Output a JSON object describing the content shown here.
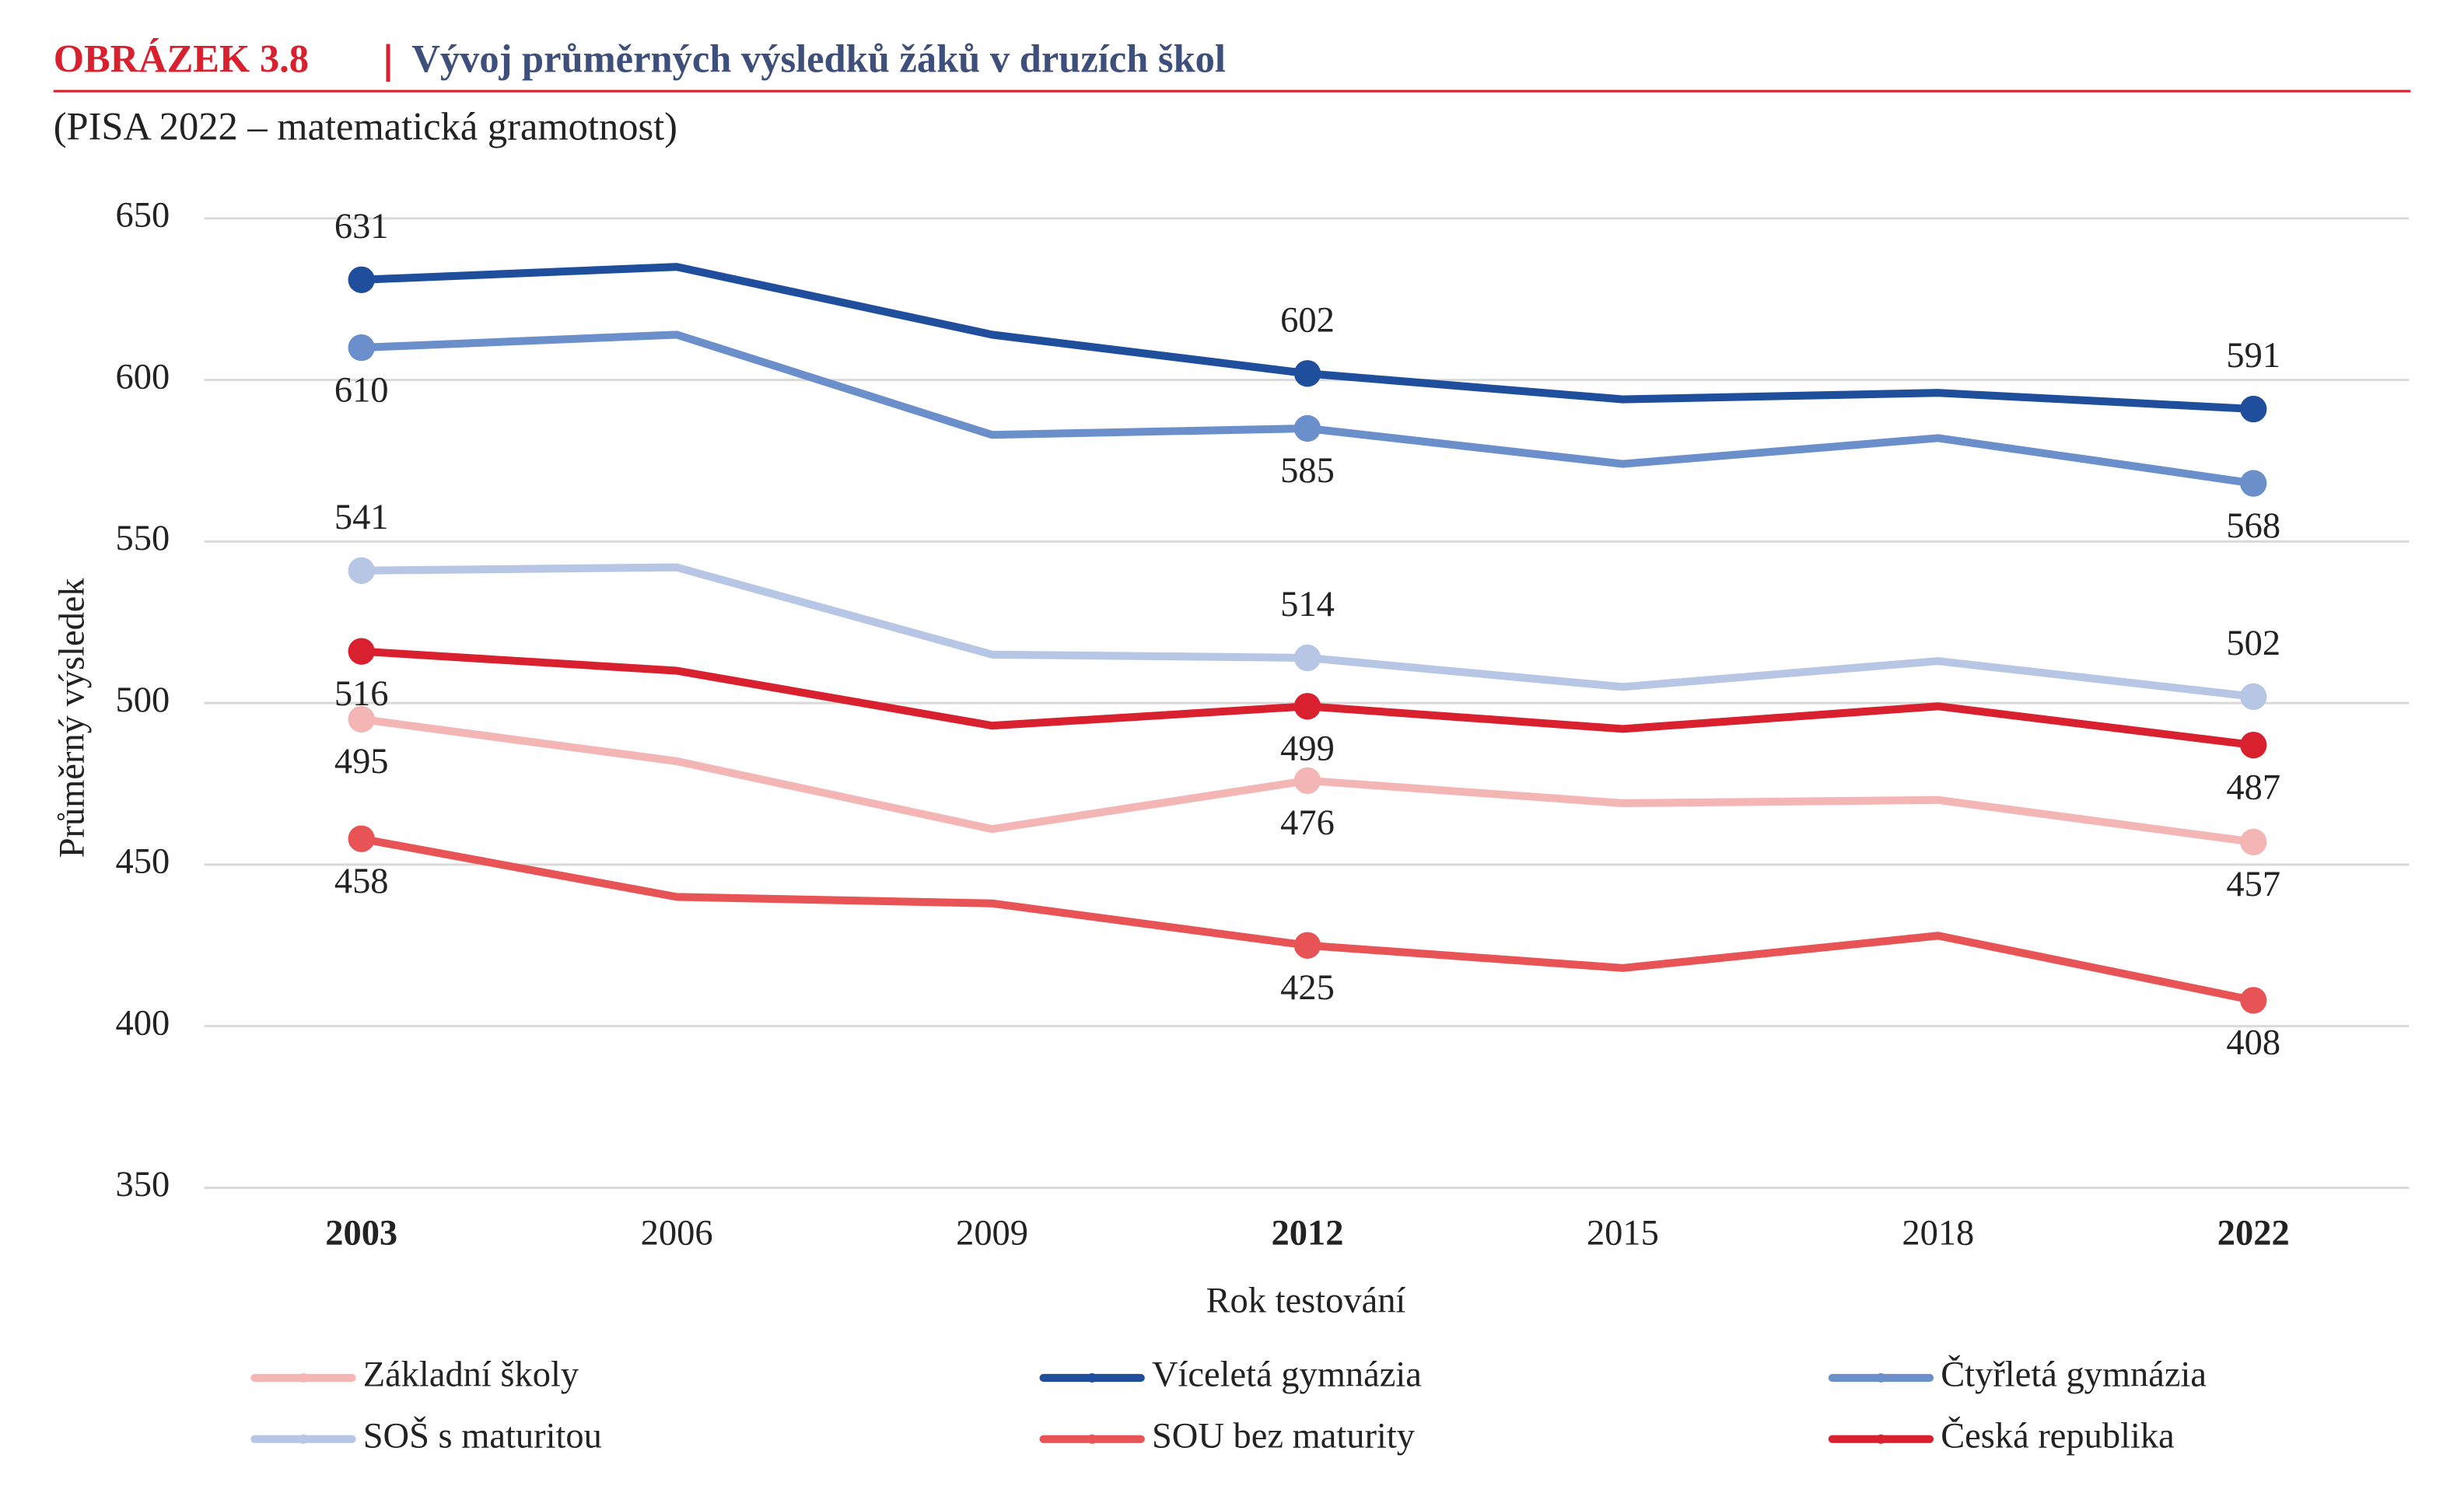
{
  "chart_data": {
    "type": "line",
    "figure_label": "OBRÁZEK 3.8",
    "title": "Vývoj průměrných výsledků žáků v druzích škol",
    "subtitle": "(PISA 2022 – matematická gramotnost)",
    "x_label": "Rok testování",
    "y_label": "Průměrný výsledek",
    "categories": [
      "2003",
      "2006",
      "2009",
      "2012",
      "2015",
      "2018",
      "2022"
    ],
    "ylim": [
      350,
      650
    ],
    "yticks": [
      350,
      400,
      450,
      500,
      550,
      600,
      650
    ],
    "grid": true,
    "legend": "bottom",
    "series": [
      {
        "name": "Základní školy",
        "color": "#f4b6b4",
        "values": [
          495,
          482,
          461,
          476,
          469,
          470,
          457
        ],
        "value_labels": [
          "495",
          null,
          null,
          "476",
          null,
          null,
          "457"
        ]
      },
      {
        "name": "Víceletá gymnázia",
        "color": "#1f4e9c",
        "values": [
          631,
          635,
          614,
          602,
          594,
          596,
          591
        ],
        "value_labels": [
          "631",
          null,
          null,
          "602",
          null,
          null,
          "591"
        ]
      },
      {
        "name": "Čtyřletá gymnázia",
        "color": "#6b8fcb",
        "values": [
          610,
          614,
          583,
          585,
          574,
          582,
          568
        ],
        "value_labels": [
          "610",
          null,
          null,
          "585",
          null,
          null,
          "568"
        ]
      },
      {
        "name": "SOŠ s maturitou",
        "color": "#b7c6e4",
        "values": [
          541,
          542,
          515,
          514,
          505,
          513,
          502
        ],
        "value_labels": [
          "541",
          null,
          null,
          "514",
          null,
          null,
          "502"
        ]
      },
      {
        "name": "SOU bez maturity",
        "color": "#e85456",
        "values": [
          458,
          440,
          438,
          425,
          418,
          428,
          408
        ],
        "value_labels": [
          "458",
          null,
          null,
          "425",
          null,
          null,
          "408"
        ]
      },
      {
        "name": "Česká republika",
        "color": "#d9202e",
        "values": [
          516,
          510,
          493,
          499,
          492,
          499,
          487
        ],
        "value_labels": [
          "516",
          null,
          null,
          "499",
          null,
          null,
          "487"
        ]
      }
    ]
  }
}
